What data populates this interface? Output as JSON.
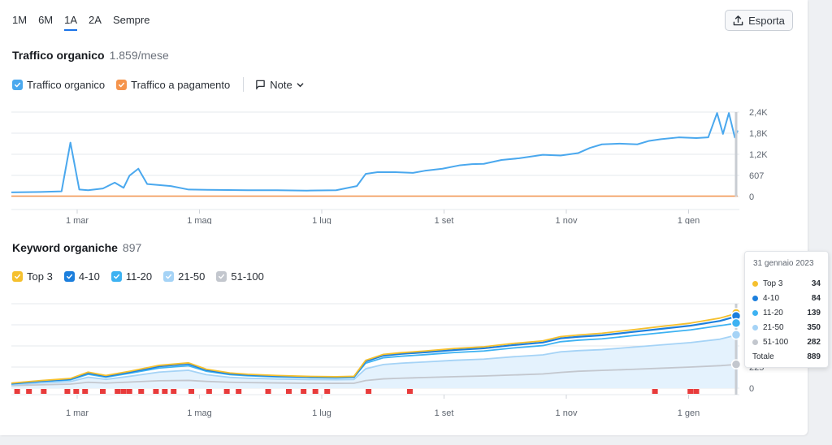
{
  "periods": [
    {
      "label": "1M",
      "active": false
    },
    {
      "label": "6M",
      "active": false
    },
    {
      "label": "1A",
      "active": true
    },
    {
      "label": "2A",
      "active": false
    },
    {
      "label": "Sempre",
      "active": false
    }
  ],
  "export_label": "Esporta",
  "traffic": {
    "title": "Traffico organico",
    "value": "1.859/mese",
    "legend": {
      "organic": "Traffico organico",
      "paid": "Traffico a pagamento",
      "notes": "Note"
    }
  },
  "keywords": {
    "title": "Keyword organiche",
    "value": "897",
    "legend": [
      "Top 3",
      "4-10",
      "11-20",
      "21-50",
      "51-100"
    ]
  },
  "colors": {
    "organic": "#4aa8ee",
    "paid": "#f5944c",
    "top3": "#f5c02e",
    "k4_10": "#1c7fdd",
    "k11_20": "#3db2f2",
    "k21_50": "#a5d3f6",
    "k51_100": "#c3c7ce",
    "flag": "#e83b3b"
  },
  "tooltip": {
    "date": "31 gennaio 2023",
    "rows": [
      {
        "name": "Top 3",
        "value": "34"
      },
      {
        "name": "4-10",
        "value": "84"
      },
      {
        "name": "11-20",
        "value": "139"
      },
      {
        "name": "21-50",
        "value": "350"
      },
      {
        "name": "51-100",
        "value": "282"
      }
    ],
    "total_label": "Totale",
    "total_value": "889"
  },
  "chart_data": [
    {
      "type": "line",
      "title": "Traffico organico",
      "x_ticks": [
        "1 mar",
        "1 mag",
        "1 lug",
        "1 set",
        "1 nov",
        "1 gen"
      ],
      "y_ticks": [
        "2,4K",
        "1,8K",
        "1,2K",
        "607",
        "0"
      ],
      "ylim": [
        0,
        2428
      ],
      "series": [
        {
          "name": "Traffico organico",
          "x_index": [
            0,
            0.5,
            0.85,
            1.0,
            1.15,
            1.3,
            1.55,
            1.75,
            1.9,
            2.0,
            2.15,
            2.3,
            2.5,
            2.7,
            3.0,
            3.5,
            4.0,
            4.5,
            5.0,
            5.5,
            5.85,
            6.0,
            6.2,
            6.5,
            6.8,
            7.0,
            7.3,
            7.6,
            7.8,
            8.0,
            8.3,
            8.6,
            8.8,
            9.0,
            9.3,
            9.6,
            9.8,
            10.0,
            10.3,
            10.6,
            10.8,
            11.0,
            11.3,
            11.6,
            11.8,
            11.95,
            12.05,
            12.15,
            12.25,
            12.3
          ],
          "values": [
            120,
            130,
            150,
            1550,
            200,
            180,
            230,
            400,
            250,
            600,
            800,
            360,
            330,
            300,
            200,
            190,
            180,
            180,
            170,
            180,
            300,
            650,
            700,
            700,
            680,
            740,
            800,
            900,
            930,
            940,
            1050,
            1100,
            1150,
            1200,
            1180,
            1250,
            1400,
            1500,
            1520,
            1500,
            1600,
            1650,
            1700,
            1680,
            1700,
            2400,
            1800,
            2400,
            1700,
            1900
          ]
        },
        {
          "name": "Traffico a pagamento",
          "x_index": [
            0,
            12.3
          ],
          "values": [
            0,
            0
          ]
        }
      ]
    },
    {
      "type": "area",
      "title": "Keyword organiche",
      "x_ticks": [
        "1 mar",
        "1 mag",
        "1 lug",
        "1 set",
        "1 nov",
        "1 gen"
      ],
      "y_ticks": [
        "225",
        "0"
      ],
      "ylim": [
        0,
        1000
      ],
      "x_index": [
        0,
        0.5,
        1.0,
        1.3,
        1.6,
        2.0,
        2.5,
        3.0,
        3.3,
        3.7,
        4.0,
        4.5,
        5.0,
        5.5,
        5.8,
        6.0,
        6.3,
        6.6,
        7.0,
        7.5,
        8.0,
        8.5,
        9.0,
        9.3,
        9.6,
        10.0,
        10.5,
        11.0,
        11.5,
        12.0,
        12.3
      ],
      "series": [
        {
          "name": "Top 3",
          "values": [
            60,
            90,
            115,
            190,
            150,
            200,
            270,
            300,
            225,
            180,
            165,
            150,
            140,
            135,
            140,
            330,
            400,
            420,
            440,
            470,
            490,
            530,
            560,
            610,
            630,
            650,
            690,
            730,
            770,
            830,
            889
          ]
        },
        {
          "name": "4-10",
          "values": [
            55,
            85,
            108,
            180,
            142,
            190,
            258,
            288,
            215,
            172,
            158,
            143,
            134,
            130,
            134,
            318,
            386,
            406,
            424,
            452,
            472,
            510,
            540,
            590,
            608,
            626,
            664,
            702,
            740,
            796,
            855
          ]
        },
        {
          "name": "11-20",
          "values": [
            50,
            78,
            98,
            165,
            130,
            176,
            238,
            266,
            200,
            160,
            147,
            134,
            126,
            122,
            126,
            296,
            360,
            378,
            396,
            422,
            440,
            476,
            504,
            550,
            568,
            584,
            620,
            655,
            690,
            740,
            771
          ]
        },
        {
          "name": "21-50",
          "values": [
            40,
            62,
            78,
            130,
            104,
            140,
            190,
            212,
            160,
            128,
            118,
            108,
            102,
            100,
            102,
            230,
            280,
            296,
            310,
            330,
            344,
            372,
            394,
            430,
            444,
            456,
            484,
            512,
            540,
            580,
            632
          ]
        },
        {
          "name": "51-100",
          "values": [
            30,
            40,
            48,
            70,
            60,
            72,
            88,
            92,
            80,
            70,
            66,
            62,
            58,
            57,
            58,
            90,
            110,
            118,
            126,
            136,
            144,
            156,
            168,
            186,
            200,
            210,
            222,
            236,
            250,
            266,
            282
          ]
        }
      ],
      "note_flags_x_index": [
        0.05,
        0.25,
        0.5,
        0.9,
        1.05,
        1.2,
        1.5,
        1.75,
        1.85,
        1.95,
        2.15,
        2.4,
        2.55,
        2.7,
        3.0,
        3.3,
        3.6,
        3.8,
        4.3,
        4.65,
        4.9,
        5.1,
        5.3,
        6.0,
        6.7,
        10.85,
        11.45,
        11.55
      ]
    }
  ]
}
